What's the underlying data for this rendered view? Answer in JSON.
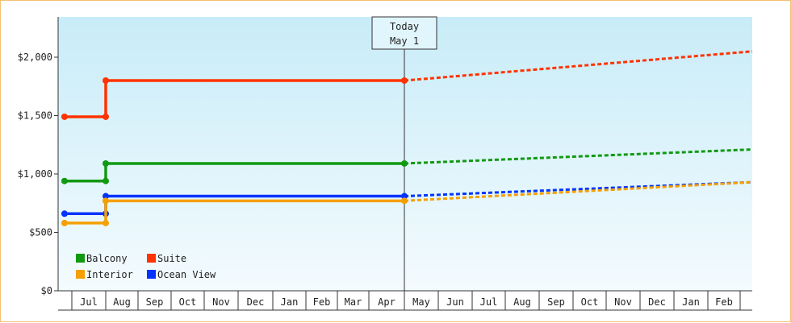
{
  "chart_data": {
    "type": "line",
    "title": "",
    "xlabel": "",
    "ylabel": "",
    "ylim": [
      0,
      2300
    ],
    "y_ticks": [
      "$0",
      "$500",
      "$1,000",
      "$1,500",
      "$2,000"
    ],
    "y_tick_values": [
      0,
      500,
      1000,
      1500,
      2000
    ],
    "x_ticks": [
      "Jul",
      "Aug",
      "Sep",
      "Oct",
      "Nov",
      "Dec",
      "Jan",
      "Feb",
      "Mar",
      "Apr",
      "May",
      "Jun",
      "Jul",
      "Aug",
      "Sep",
      "Oct",
      "Nov",
      "Dec",
      "Jan",
      "Feb"
    ],
    "grid": false,
    "legend_placement": "bottom-left",
    "today_marker": {
      "line1": "Today",
      "line2": "May 1"
    },
    "series": [
      {
        "name": "Suite",
        "color": "#ff3300",
        "steps": [
          [
            "2023-06-15",
            1490
          ],
          [
            "2023-08-01",
            1490
          ],
          [
            "2023-08-01",
            1800
          ],
          [
            "2024-05-01",
            1800
          ]
        ],
        "forecast": [
          [
            "2024-05-01",
            1800
          ],
          [
            "2025-03-01",
            2050
          ]
        ]
      },
      {
        "name": "Balcony",
        "color": "#119911",
        "steps": [
          [
            "2023-06-15",
            940
          ],
          [
            "2023-08-01",
            940
          ],
          [
            "2023-08-01",
            1090
          ],
          [
            "2024-05-01",
            1090
          ]
        ],
        "forecast": [
          [
            "2024-05-01",
            1090
          ],
          [
            "2025-03-01",
            1210
          ]
        ]
      },
      {
        "name": "Ocean View",
        "color": "#0033ff",
        "steps": [
          [
            "2023-06-15",
            660
          ],
          [
            "2023-08-01",
            660
          ],
          [
            "2023-08-01",
            810
          ],
          [
            "2024-05-01",
            810
          ]
        ],
        "forecast": [
          [
            "2024-05-01",
            810
          ],
          [
            "2025-03-01",
            930
          ]
        ]
      },
      {
        "name": "Interior",
        "color": "#f5a000",
        "steps": [
          [
            "2023-06-15",
            580
          ],
          [
            "2023-08-01",
            580
          ],
          [
            "2023-08-01",
            770
          ],
          [
            "2024-05-01",
            770
          ]
        ],
        "forecast": [
          [
            "2024-05-01",
            770
          ],
          [
            "2025-03-01",
            930
          ]
        ]
      }
    ],
    "legend": [
      {
        "name": "Balcony",
        "color": "#119911"
      },
      {
        "name": "Suite",
        "color": "#ff3300"
      },
      {
        "name": "Interior",
        "color": "#f5a000"
      },
      {
        "name": "Ocean View",
        "color": "#0033ff"
      }
    ]
  }
}
